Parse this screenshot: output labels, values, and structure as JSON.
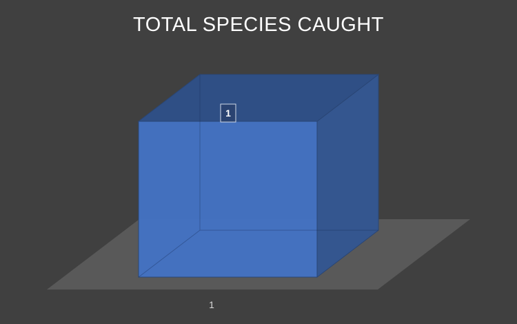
{
  "chart_data": {
    "type": "bar",
    "title": "TOTAL SPECIES CAUGHT",
    "categories": [
      "1"
    ],
    "values": [
      1
    ],
    "data_labels": [
      "1"
    ],
    "ylim": [
      0,
      1
    ],
    "xlabel": "",
    "ylabel": "",
    "grid": false,
    "legend": "none",
    "style": "3d-column",
    "colors": {
      "background": "#404040",
      "floor": "#595959",
      "bar_front": "#4472c4",
      "bar_top": "#2f4f85",
      "bar_side": "#34568f",
      "title": "#ffffff",
      "tick": "#d9d9d9"
    }
  }
}
